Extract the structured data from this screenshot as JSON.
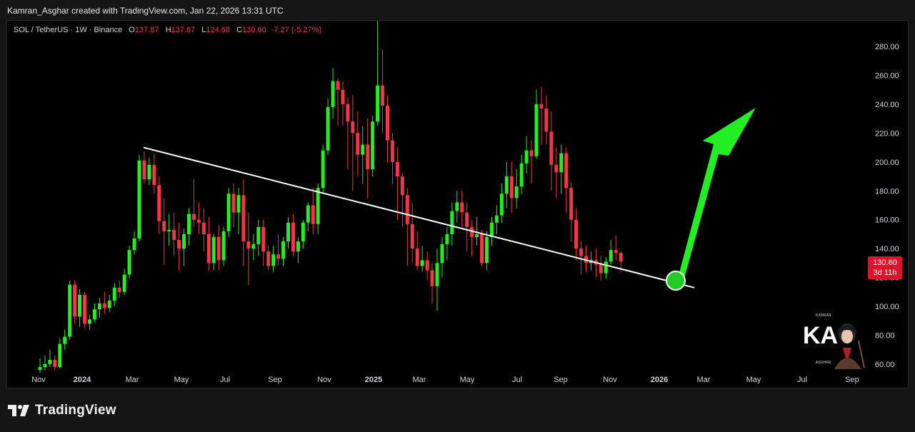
{
  "header": {
    "credit": "Kamran_Asghar created with TradingView.com, Jan 22, 2026 13:31 UTC"
  },
  "legend": {
    "symbol": "SOL / TetherUS · 1W · Binance",
    "open_label": "O",
    "open": "137.87",
    "high_label": "H",
    "high": "137.87",
    "low_label": "L",
    "low": "124.68",
    "close_label": "C",
    "close": "130.60",
    "change": "-7.27 (-5.27%)"
  },
  "price_badge": {
    "price": "130.60",
    "countdown": "3d 11h"
  },
  "footer": {
    "brand": "TradingView"
  },
  "watermark": {
    "text_top": "KAMRAN",
    "text_bottom": "ASGHAR",
    "initials": "KA"
  },
  "colors": {
    "up": "#22ee22",
    "down": "#f23645",
    "trendline": "#ffffff",
    "arrow": "#22ee22",
    "badge": "#e1112c"
  },
  "chart_data": {
    "type": "candlestick",
    "symbol": "SOL / TetherUS",
    "interval": "1W",
    "exchange": "Binance",
    "ylim": [
      55,
      298
    ],
    "y_ticks": [
      "280.00",
      "260.00",
      "240.00",
      "220.00",
      "200.00",
      "180.00",
      "160.00",
      "140.00",
      "120.00",
      "100.00",
      "80.00",
      "60.00"
    ],
    "x_ticks": [
      {
        "label": "Nov",
        "bold": false
      },
      {
        "label": "2024",
        "bold": true
      },
      {
        "label": "Mar",
        "bold": false
      },
      {
        "label": "May",
        "bold": false
      },
      {
        "label": "Jul",
        "bold": false
      },
      {
        "label": "Sep",
        "bold": false
      },
      {
        "label": "Nov",
        "bold": false
      },
      {
        "label": "2025",
        "bold": true
      },
      {
        "label": "Mar",
        "bold": false
      },
      {
        "label": "May",
        "bold": false
      },
      {
        "label": "Jul",
        "bold": false
      },
      {
        "label": "Sep",
        "bold": false
      },
      {
        "label": "Nov",
        "bold": false
      },
      {
        "label": "2026",
        "bold": true
      },
      {
        "label": "Mar",
        "bold": false
      },
      {
        "label": "May",
        "bold": false
      },
      {
        "label": "Jul",
        "bold": false
      },
      {
        "label": "Sep",
        "bold": false
      }
    ],
    "trendline": {
      "from": [
        207,
        210
      ],
      "to": [
        0,
        113
      ]
    },
    "target_arrow": {
      "from": [
        119
      ],
      "to": [
        238
      ]
    },
    "candles": [
      [
        56,
        64,
        54,
        58
      ],
      [
        58,
        66,
        56,
        60
      ],
      [
        60,
        70,
        58,
        63
      ],
      [
        63,
        66,
        56,
        58
      ],
      [
        58,
        78,
        57,
        74
      ],
      [
        74,
        84,
        70,
        79
      ],
      [
        79,
        118,
        77,
        115
      ],
      [
        115,
        118,
        88,
        93
      ],
      [
        93,
        112,
        86,
        108
      ],
      [
        108,
        110,
        85,
        88
      ],
      [
        88,
        94,
        84,
        91
      ],
      [
        91,
        102,
        89,
        98
      ],
      [
        98,
        106,
        92,
        102
      ],
      [
        102,
        110,
        95,
        99
      ],
      [
        99,
        108,
        96,
        104
      ],
      [
        104,
        116,
        100,
        113
      ],
      [
        113,
        118,
        106,
        110
      ],
      [
        110,
        126,
        108,
        122
      ],
      [
        122,
        142,
        119,
        139
      ],
      [
        139,
        152,
        136,
        147
      ],
      [
        147,
        205,
        145,
        201
      ],
      [
        201,
        207,
        185,
        188
      ],
      [
        188,
        203,
        184,
        198
      ],
      [
        198,
        206,
        178,
        184
      ],
      [
        184,
        190,
        150,
        159
      ],
      [
        159,
        175,
        129,
        152
      ],
      [
        152,
        164,
        142,
        153
      ],
      [
        153,
        165,
        135,
        146
      ],
      [
        146,
        158,
        125,
        140
      ],
      [
        140,
        154,
        128,
        150
      ],
      [
        150,
        168,
        142,
        164
      ],
      [
        164,
        188,
        155,
        160
      ],
      [
        160,
        172,
        150,
        158
      ],
      [
        158,
        168,
        138,
        150
      ],
      [
        150,
        162,
        125,
        130
      ],
      [
        130,
        150,
        125,
        148
      ],
      [
        148,
        156,
        125,
        132
      ],
      [
        132,
        155,
        128,
        152
      ],
      [
        152,
        182,
        148,
        178
      ],
      [
        178,
        185,
        155,
        165
      ],
      [
        165,
        182,
        150,
        177
      ],
      [
        177,
        188,
        128,
        145
      ],
      [
        145,
        165,
        115,
        140
      ],
      [
        140,
        150,
        132,
        143
      ],
      [
        143,
        160,
        135,
        155
      ],
      [
        155,
        160,
        128,
        138
      ],
      [
        138,
        142,
        125,
        128
      ],
      [
        128,
        142,
        124,
        136
      ],
      [
        136,
        150,
        128,
        133
      ],
      [
        133,
        148,
        128,
        145
      ],
      [
        145,
        162,
        140,
        158
      ],
      [
        158,
        164,
        135,
        138
      ],
      [
        138,
        148,
        130,
        145
      ],
      [
        145,
        160,
        140,
        158
      ],
      [
        158,
        172,
        152,
        170
      ],
      [
        170,
        182,
        150,
        157
      ],
      [
        157,
        185,
        150,
        182
      ],
      [
        182,
        212,
        178,
        208
      ],
      [
        208,
        244,
        205,
        238
      ],
      [
        238,
        265,
        230,
        256
      ],
      [
        256,
        258,
        225,
        250
      ],
      [
        250,
        256,
        225,
        240
      ],
      [
        240,
        245,
        195,
        228
      ],
      [
        228,
        246,
        180,
        220
      ],
      [
        220,
        235,
        190,
        205
      ],
      [
        205,
        225,
        185,
        212
      ],
      [
        212,
        230,
        175,
        195
      ],
      [
        195,
        232,
        190,
        228
      ],
      [
        228,
        298,
        225,
        253
      ],
      [
        253,
        278,
        220,
        239
      ],
      [
        239,
        246,
        200,
        215
      ],
      [
        215,
        220,
        185,
        200
      ],
      [
        200,
        210,
        160,
        190
      ],
      [
        190,
        192,
        155,
        177
      ],
      [
        177,
        182,
        128,
        157
      ],
      [
        157,
        172,
        130,
        140
      ],
      [
        140,
        152,
        125,
        128
      ],
      [
        128,
        142,
        124,
        132
      ],
      [
        132,
        138,
        118,
        125
      ],
      [
        125,
        130,
        102,
        114
      ],
      [
        114,
        140,
        97,
        130
      ],
      [
        130,
        148,
        120,
        143
      ],
      [
        143,
        155,
        132,
        150
      ],
      [
        150,
        172,
        142,
        166
      ],
      [
        166,
        180,
        158,
        172
      ],
      [
        172,
        180,
        155,
        165
      ],
      [
        165,
        172,
        138,
        155
      ],
      [
        155,
        160,
        135,
        148
      ],
      [
        148,
        162,
        142,
        150
      ],
      [
        150,
        153,
        128,
        130
      ],
      [
        130,
        152,
        125,
        148
      ],
      [
        148,
        162,
        142,
        158
      ],
      [
        158,
        170,
        150,
        163
      ],
      [
        163,
        185,
        158,
        178
      ],
      [
        178,
        200,
        168,
        190
      ],
      [
        190,
        200,
        165,
        175
      ],
      [
        175,
        195,
        168,
        183
      ],
      [
        183,
        205,
        178,
        199
      ],
      [
        199,
        218,
        192,
        208
      ],
      [
        208,
        215,
        185,
        204
      ],
      [
        204,
        250,
        202,
        240
      ],
      [
        240,
        252,
        212,
        237
      ],
      [
        237,
        246,
        212,
        221
      ],
      [
        221,
        235,
        180,
        198
      ],
      [
        198,
        210,
        175,
        193
      ],
      [
        193,
        212,
        178,
        206
      ],
      [
        206,
        210,
        165,
        182
      ],
      [
        182,
        186,
        145,
        160
      ],
      [
        160,
        168,
        132,
        140
      ],
      [
        140,
        145,
        122,
        135
      ],
      [
        135,
        142,
        124,
        130
      ],
      [
        130,
        138,
        125,
        132
      ],
      [
        132,
        140,
        120,
        129
      ],
      [
        129,
        135,
        118,
        123
      ],
      [
        123,
        134,
        119,
        131
      ],
      [
        131,
        146,
        129,
        139
      ],
      [
        139,
        149,
        132,
        137
      ],
      [
        137,
        138,
        124,
        131
      ]
    ]
  }
}
